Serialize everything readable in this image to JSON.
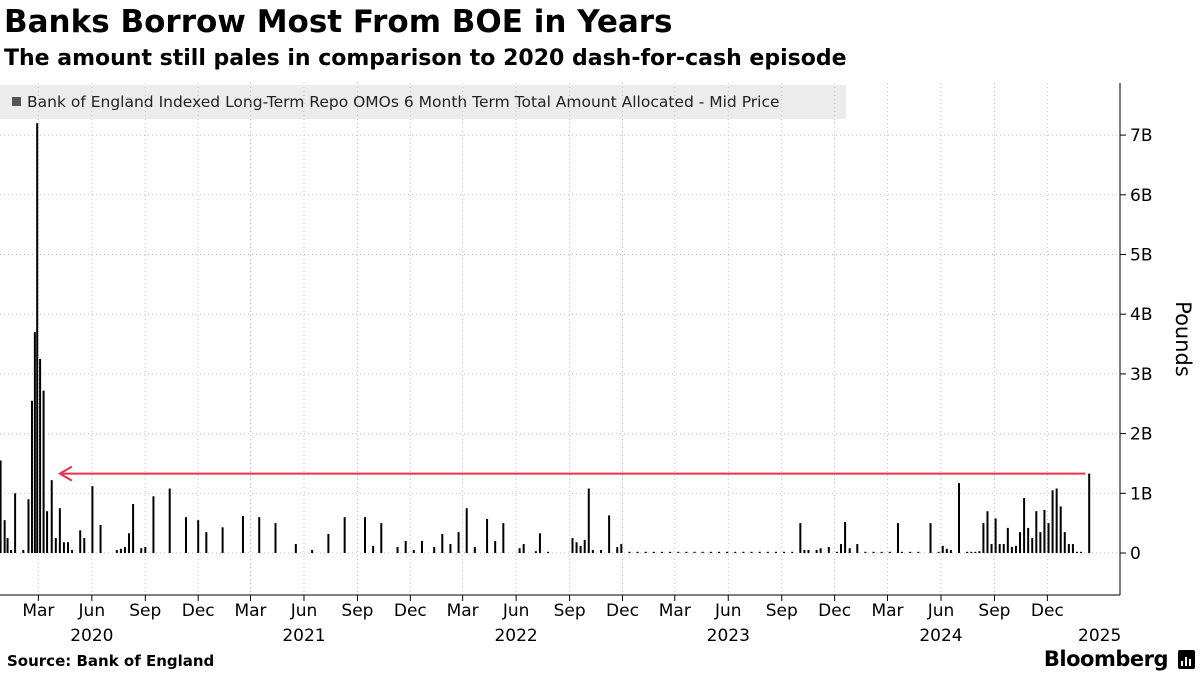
{
  "header": {
    "title": "Banks Borrow Most From BOE in Years",
    "subtitle": "The amount still pales in comparison to 2020 dash-for-cash episode"
  },
  "footer": {
    "source": "Source:  Bank of England",
    "brand": "Bloomberg",
    "brand_icon": "bloomberg-terminal-icon"
  },
  "colors": {
    "bar": "#000000",
    "legend_swatch": "#555555",
    "arrow": "#e8314b",
    "grid": "#c0c0c0"
  },
  "chart_data": {
    "type": "bar",
    "title": "Banks Borrow Most From BOE in Years",
    "subtitle": "The amount still pales in comparison to 2020 dash-for-cash episode",
    "ylabel": "Pounds",
    "xlabel": "",
    "ylim": [
      -0.7,
      7.8
    ],
    "grid": true,
    "legend_position": "top-left",
    "y_ticks": [
      {
        "value": 0,
        "label": "0"
      },
      {
        "value": 1,
        "label": "1B"
      },
      {
        "value": 2,
        "label": "2B"
      },
      {
        "value": 3,
        "label": "3B"
      },
      {
        "value": 4,
        "label": "4B"
      },
      {
        "value": 5,
        "label": "5B"
      },
      {
        "value": 6,
        "label": "6B"
      },
      {
        "value": 7,
        "label": "7B"
      }
    ],
    "month_ticks": [
      {
        "date": "2020-03-01",
        "label": "Mar"
      },
      {
        "date": "2020-06-01",
        "label": "Jun"
      },
      {
        "date": "2020-09-01",
        "label": "Sep"
      },
      {
        "date": "2020-12-01",
        "label": "Dec"
      },
      {
        "date": "2021-03-01",
        "label": "Mar"
      },
      {
        "date": "2021-06-01",
        "label": "Jun"
      },
      {
        "date": "2021-09-01",
        "label": "Sep"
      },
      {
        "date": "2021-12-01",
        "label": "Dec"
      },
      {
        "date": "2022-03-01",
        "label": "Mar"
      },
      {
        "date": "2022-06-01",
        "label": "Jun"
      },
      {
        "date": "2022-09-01",
        "label": "Sep"
      },
      {
        "date": "2022-12-01",
        "label": "Dec"
      },
      {
        "date": "2023-03-01",
        "label": "Mar"
      },
      {
        "date": "2023-06-01",
        "label": "Jun"
      },
      {
        "date": "2023-09-01",
        "label": "Sep"
      },
      {
        "date": "2023-12-01",
        "label": "Dec"
      },
      {
        "date": "2024-03-01",
        "label": "Mar"
      },
      {
        "date": "2024-06-01",
        "label": "Jun"
      },
      {
        "date": "2024-09-01",
        "label": "Sep"
      },
      {
        "date": "2024-12-01",
        "label": "Dec"
      }
    ],
    "year_ticks": [
      {
        "date": "2020-06-01",
        "label": "2020"
      },
      {
        "date": "2021-06-01",
        "label": "2021"
      },
      {
        "date": "2022-06-01",
        "label": "2022"
      },
      {
        "date": "2023-06-01",
        "label": "2023"
      },
      {
        "date": "2024-06-01",
        "label": "2024"
      },
      {
        "date": "2025-03-01",
        "label": "2025"
      }
    ],
    "x_range": [
      "2019-12-26",
      "2025-04-05"
    ],
    "series": [
      {
        "name": "Bank of England Indexed Long-Term Repo OMOs 6 Month Term Total Amount Allocated - Mid Price",
        "points": [
          [
            "2019-12-27",
            1.55
          ],
          [
            "2020-01-03",
            0.55
          ],
          [
            "2020-01-08",
            0.25
          ],
          [
            "2020-01-14",
            0.05
          ],
          [
            "2020-01-21",
            1.0
          ],
          [
            "2020-02-04",
            0.05
          ],
          [
            "2020-02-13",
            0.9
          ],
          [
            "2020-02-19",
            2.55
          ],
          [
            "2020-02-24",
            3.7
          ],
          [
            "2020-02-28",
            7.2
          ],
          [
            "2020-03-04",
            3.25
          ],
          [
            "2020-03-10",
            2.72
          ],
          [
            "2020-03-16",
            0.7
          ],
          [
            "2020-03-24",
            1.22
          ],
          [
            "2020-03-31",
            0.25
          ],
          [
            "2020-04-07",
            0.75
          ],
          [
            "2020-04-14",
            0.18
          ],
          [
            "2020-04-21",
            0.18
          ],
          [
            "2020-04-28",
            0.05
          ],
          [
            "2020-05-12",
            0.38
          ],
          [
            "2020-05-19",
            0.25
          ],
          [
            "2020-06-02",
            1.12
          ],
          [
            "2020-06-16",
            0.47
          ],
          [
            "2020-07-14",
            0.05
          ],
          [
            "2020-07-21",
            0.07
          ],
          [
            "2020-07-28",
            0.1
          ],
          [
            "2020-08-04",
            0.33
          ],
          [
            "2020-08-11",
            0.82
          ],
          [
            "2020-08-25",
            0.08
          ],
          [
            "2020-09-01",
            0.1
          ],
          [
            "2020-09-15",
            0.95
          ],
          [
            "2020-10-13",
            1.08
          ],
          [
            "2020-11-10",
            0.6
          ],
          [
            "2020-12-01",
            0.55
          ],
          [
            "2020-12-15",
            0.35
          ],
          [
            "2021-01-12",
            0.43
          ],
          [
            "2021-02-16",
            0.62
          ],
          [
            "2021-03-16",
            0.6
          ],
          [
            "2021-04-13",
            0.5
          ],
          [
            "2021-05-18",
            0.15
          ],
          [
            "2021-06-15",
            0.05
          ],
          [
            "2021-07-13",
            0.32
          ],
          [
            "2021-08-10",
            0.6
          ],
          [
            "2021-09-14",
            0.6
          ],
          [
            "2021-09-28",
            0.12
          ],
          [
            "2021-10-12",
            0.5
          ],
          [
            "2021-11-09",
            0.1
          ],
          [
            "2021-11-23",
            0.2
          ],
          [
            "2021-12-07",
            0.05
          ],
          [
            "2021-12-21",
            0.2
          ],
          [
            "2022-01-11",
            0.1
          ],
          [
            "2022-01-25",
            0.32
          ],
          [
            "2022-02-08",
            0.15
          ],
          [
            "2022-02-22",
            0.35
          ],
          [
            "2022-03-08",
            0.75
          ],
          [
            "2022-03-22",
            0.1
          ],
          [
            "2022-04-12",
            0.57
          ],
          [
            "2022-04-26",
            0.2
          ],
          [
            "2022-05-10",
            0.5
          ],
          [
            "2022-06-07",
            0.08
          ],
          [
            "2022-06-14",
            0.15
          ],
          [
            "2022-07-05",
            0.03
          ],
          [
            "2022-07-12",
            0.33
          ],
          [
            "2022-07-26",
            0.02
          ],
          [
            "2022-09-06",
            0.25
          ],
          [
            "2022-09-13",
            0.18
          ],
          [
            "2022-09-20",
            0.12
          ],
          [
            "2022-09-27",
            0.22
          ],
          [
            "2022-10-04",
            1.08
          ],
          [
            "2022-10-11",
            0.05
          ],
          [
            "2022-10-25",
            0.05
          ],
          [
            "2022-11-08",
            0.63
          ],
          [
            "2022-11-22",
            0.1
          ],
          [
            "2022-11-29",
            0.15
          ],
          [
            "2022-12-13",
            0.02
          ],
          [
            "2022-12-27",
            0.02
          ],
          [
            "2023-01-10",
            0.02
          ],
          [
            "2023-01-24",
            0.02
          ],
          [
            "2023-02-07",
            0.02
          ],
          [
            "2023-02-21",
            0.02
          ],
          [
            "2023-03-07",
            0.02
          ],
          [
            "2023-03-21",
            0.02
          ],
          [
            "2023-04-04",
            0.02
          ],
          [
            "2023-04-18",
            0.02
          ],
          [
            "2023-05-02",
            0.02
          ],
          [
            "2023-05-16",
            0.02
          ],
          [
            "2023-05-30",
            0.02
          ],
          [
            "2023-06-13",
            0.02
          ],
          [
            "2023-06-27",
            0.02
          ],
          [
            "2023-07-11",
            0.02
          ],
          [
            "2023-07-25",
            0.02
          ],
          [
            "2023-08-08",
            0.02
          ],
          [
            "2023-08-22",
            0.02
          ],
          [
            "2023-09-05",
            0.02
          ],
          [
            "2023-09-19",
            0.02
          ],
          [
            "2023-10-03",
            0.5
          ],
          [
            "2023-10-10",
            0.05
          ],
          [
            "2023-10-17",
            0.05
          ],
          [
            "2023-10-31",
            0.05
          ],
          [
            "2023-11-07",
            0.08
          ],
          [
            "2023-11-21",
            0.1
          ],
          [
            "2023-12-05",
            0.02
          ],
          [
            "2023-12-12",
            0.15
          ],
          [
            "2023-12-19",
            0.52
          ],
          [
            "2023-12-27",
            0.08
          ],
          [
            "2024-01-09",
            0.15
          ],
          [
            "2024-01-23",
            0.02
          ],
          [
            "2024-02-06",
            0.02
          ],
          [
            "2024-02-20",
            0.02
          ],
          [
            "2024-03-05",
            0.02
          ],
          [
            "2024-03-19",
            0.5
          ],
          [
            "2024-03-26",
            0.02
          ],
          [
            "2024-04-09",
            0.02
          ],
          [
            "2024-04-23",
            0.02
          ],
          [
            "2024-05-14",
            0.5
          ],
          [
            "2024-05-28",
            0.02
          ],
          [
            "2024-06-04",
            0.12
          ],
          [
            "2024-06-11",
            0.07
          ],
          [
            "2024-06-18",
            0.05
          ],
          [
            "2024-07-02",
            1.17
          ],
          [
            "2024-07-16",
            0.02
          ],
          [
            "2024-07-23",
            0.02
          ],
          [
            "2024-07-30",
            0.02
          ],
          [
            "2024-08-06",
            0.03
          ],
          [
            "2024-08-13",
            0.5
          ],
          [
            "2024-08-20",
            0.7
          ],
          [
            "2024-08-27",
            0.15
          ],
          [
            "2024-09-03",
            0.58
          ],
          [
            "2024-09-10",
            0.15
          ],
          [
            "2024-09-17",
            0.15
          ],
          [
            "2024-09-24",
            0.42
          ],
          [
            "2024-10-01",
            0.1
          ],
          [
            "2024-10-08",
            0.12
          ],
          [
            "2024-10-15",
            0.35
          ],
          [
            "2024-10-22",
            0.92
          ],
          [
            "2024-10-29",
            0.42
          ],
          [
            "2024-11-05",
            0.25
          ],
          [
            "2024-11-12",
            0.7
          ],
          [
            "2024-11-19",
            0.35
          ],
          [
            "2024-11-26",
            0.72
          ],
          [
            "2024-12-03",
            0.5
          ],
          [
            "2024-12-10",
            1.05
          ],
          [
            "2024-12-17",
            1.08
          ],
          [
            "2024-12-24",
            0.78
          ],
          [
            "2024-12-31",
            0.35
          ],
          [
            "2025-01-07",
            0.15
          ],
          [
            "2025-01-14",
            0.15
          ],
          [
            "2025-01-21",
            0.02
          ],
          [
            "2025-01-28",
            0.02
          ],
          [
            "2025-02-11",
            1.33
          ]
        ]
      }
    ],
    "annotation": {
      "type": "arrow",
      "from": [
        "2025-02-04",
        1.33
      ],
      "to": [
        "2020-04-07",
        1.33
      ]
    }
  }
}
